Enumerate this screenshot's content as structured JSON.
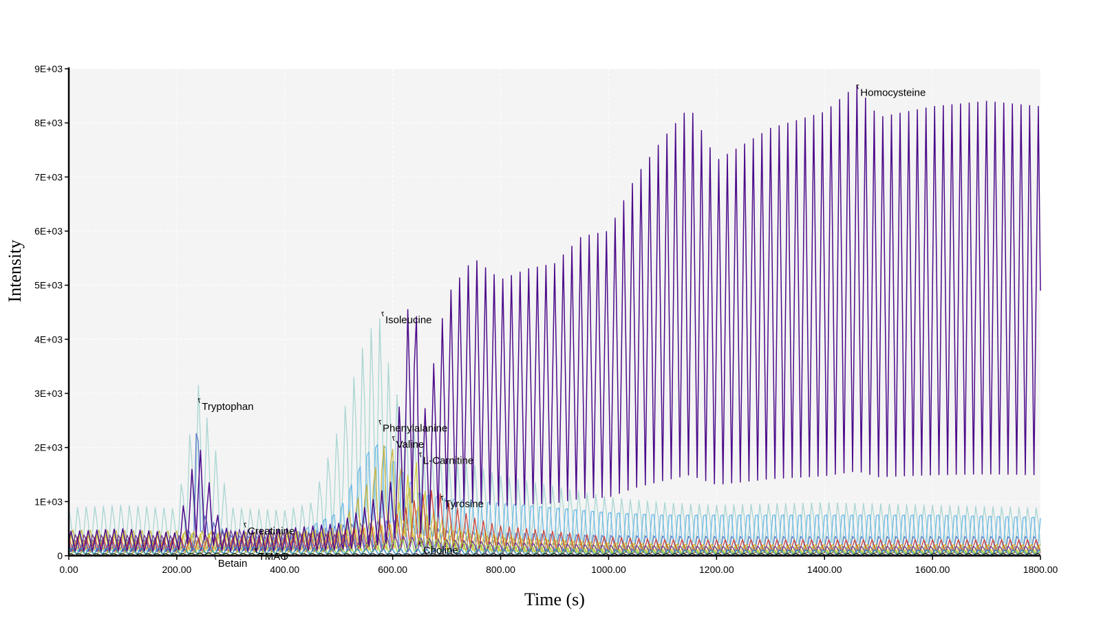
{
  "chart_data": {
    "type": "line",
    "title": "",
    "xlabel": "Time (s)",
    "ylabel": "Intensity",
    "xlim": [
      0,
      1800
    ],
    "ylim": [
      0,
      9000
    ],
    "x_ticks": [
      "0.00",
      "200.00",
      "400.00",
      "600.00",
      "800.00",
      "1000.00",
      "1200.00",
      "1400.00",
      "1600.00",
      "1800.00"
    ],
    "y_ticks": [
      "0",
      "1E+03",
      "2E+03",
      "3E+03",
      "4E+03",
      "5E+03",
      "6E+03",
      "7E+03",
      "8E+03",
      "9E+03"
    ],
    "grid": true,
    "legend": "none",
    "background_color": "#f4f4f4",
    "series": [
      {
        "name": "Homocysteine",
        "color": "#4b0a8a",
        "x": [
          0,
          100,
          200,
          240,
          280,
          300,
          400,
          500,
          550,
          600,
          640,
          650,
          700,
          750,
          800,
          850,
          900,
          950,
          1000,
          1050,
          1100,
          1150,
          1200,
          1300,
          1400,
          1460,
          1500,
          1600,
          1700,
          1800
        ],
        "y": [
          450,
          500,
          420,
          2100,
          600,
          450,
          500,
          600,
          900,
          1400,
          5900,
          2200,
          4800,
          5500,
          5100,
          5300,
          5400,
          5900,
          6000,
          7000,
          7700,
          8300,
          7300,
          7900,
          8200,
          8700,
          8100,
          8300,
          8400,
          8300
        ]
      },
      {
        "name": "Isoleucine",
        "color": "#a8d5d2",
        "x": [
          0,
          100,
          200,
          240,
          300,
          400,
          450,
          500,
          550,
          575,
          600,
          650,
          700,
          750,
          800,
          900,
          1000,
          1100,
          1200,
          1400,
          1600,
          1800
        ],
        "y": [
          900,
          950,
          880,
          3200,
          900,
          850,
          1000,
          2400,
          4100,
          4500,
          3200,
          2100,
          1800,
          1700,
          1500,
          1300,
          1100,
          1000,
          950,
          1000,
          950,
          900
        ]
      },
      {
        "name": "Tryptophan",
        "color": "#5a7ac8",
        "x": [
          0,
          100,
          200,
          230,
          238,
          250,
          300,
          400,
          500,
          600,
          700,
          800,
          1000,
          1200,
          1400,
          1600,
          1800
        ],
        "y": [
          300,
          320,
          300,
          600,
          3000,
          800,
          400,
          350,
          600,
          700,
          500,
          450,
          400,
          380,
          380,
          380,
          380
        ]
      },
      {
        "name": "Phenylalanine",
        "color": "#67b8e8",
        "x": [
          0,
          200,
          400,
          500,
          550,
          580,
          600,
          650,
          700,
          800,
          900,
          1000,
          1100,
          1200,
          1400,
          1600,
          1800
        ],
        "y": [
          300,
          300,
          350,
          900,
          2100,
          2400,
          2000,
          1300,
          1200,
          1100,
          1000,
          900,
          850,
          850,
          850,
          850,
          800
        ]
      },
      {
        "name": "Valine",
        "color": "#c8b43c",
        "x": [
          0,
          200,
          400,
          500,
          560,
          590,
          620,
          650,
          700,
          800,
          1000,
          1200,
          1400,
          1600,
          1800
        ],
        "y": [
          500,
          480,
          450,
          550,
          1500,
          2300,
          1600,
          900,
          500,
          350,
          250,
          220,
          220,
          220,
          220
        ]
      },
      {
        "name": "Carnitine",
        "color": "#d4cc3c",
        "x": [
          0,
          300,
          500,
          600,
          640,
          650,
          670,
          700,
          800,
          1000,
          1200,
          1600,
          1800
        ],
        "y": [
          400,
          420,
          450,
          600,
          1900,
          1500,
          900,
          600,
          400,
          250,
          200,
          200,
          200
        ]
      },
      {
        "name": "Tyrosine",
        "color": "#d04535",
        "x": [
          0,
          200,
          400,
          500,
          600,
          650,
          680,
          700,
          750,
          800,
          900,
          1000,
          1100,
          1200,
          1400,
          1600,
          1800
        ],
        "y": [
          350,
          320,
          380,
          450,
          700,
          1100,
          1250,
          1000,
          700,
          550,
          450,
          350,
          300,
          300,
          300,
          300,
          300
        ]
      },
      {
        "name": "Creatinine",
        "color": "#6a3c96",
        "x": [
          0,
          200,
          320,
          400,
          500,
          600,
          700,
          800,
          1000,
          1200,
          1400,
          1600,
          1800
        ],
        "y": [
          400,
          380,
          500,
          450,
          400,
          380,
          300,
          250,
          200,
          180,
          180,
          180,
          180
        ]
      },
      {
        "name": "Choline",
        "color": "#9ad24a",
        "x": [
          0,
          200,
          400,
          500,
          600,
          650,
          700,
          800,
          1000,
          1200,
          1400,
          1600,
          1800
        ],
        "y": [
          80,
          90,
          100,
          150,
          300,
          350,
          300,
          200,
          120,
          100,
          100,
          100,
          100
        ]
      },
      {
        "name": "TMAO",
        "color": "#2a8cc0",
        "x": [
          0,
          200,
          300,
          400,
          500,
          600,
          800,
          1000,
          1200,
          1400,
          1600,
          1800
        ],
        "y": [
          150,
          140,
          180,
          150,
          140,
          130,
          120,
          110,
          110,
          110,
          110,
          110
        ]
      },
      {
        "name": "Betain",
        "color": "#1a1a1a",
        "x": [
          0,
          200,
          260,
          300,
          400,
          600,
          800,
          1000,
          1200,
          1400,
          1600,
          1800
        ],
        "y": [
          40,
          40,
          60,
          45,
          40,
          40,
          40,
          40,
          40,
          40,
          40,
          40
        ]
      }
    ],
    "annotations": [
      {
        "text": "Homocysteine",
        "x": 1460,
        "y": 8700
      },
      {
        "text": "Isoleucine",
        "x": 580,
        "y": 4500
      },
      {
        "text": "Tryptophan",
        "x": 240,
        "y": 2900
      },
      {
        "text": "Phenylalanine",
        "x": 575,
        "y": 2500
      },
      {
        "text": "Valine",
        "x": 600,
        "y": 2200
      },
      {
        "text": "L-Carnitine",
        "x": 650,
        "y": 1900
      },
      {
        "text": "Tyrosine",
        "x": 690,
        "y": 1100
      },
      {
        "text": "Creatinine",
        "x": 325,
        "y": 600
      },
      {
        "text": "Choline",
        "x": 650,
        "y": 240
      },
      {
        "text": "TMAO",
        "x": 345,
        "y": 130
      },
      {
        "text": "Betain",
        "x": 270,
        "y": 0
      }
    ]
  }
}
